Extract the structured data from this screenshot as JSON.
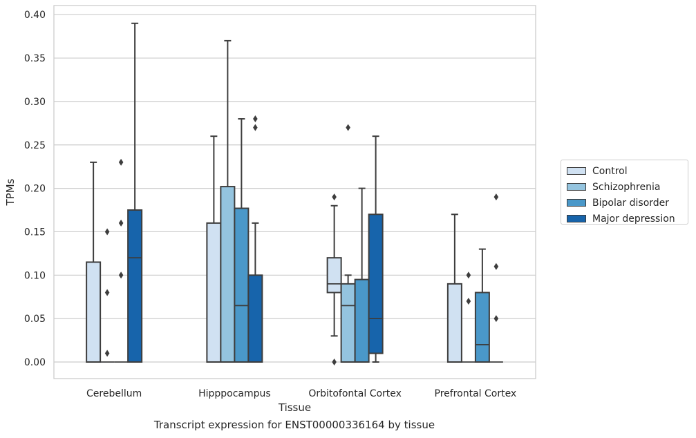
{
  "caption": "Transcript expression for ENST00000336164 by tissue",
  "chart_data": {
    "type": "box",
    "title": "",
    "xlabel": "Tissue",
    "ylabel": "TPMs",
    "ylim": [
      -0.018,
      0.405
    ],
    "yticks": [
      "0.00",
      "0.05",
      "0.10",
      "0.15",
      "0.20",
      "0.25",
      "0.30",
      "0.35",
      "0.40"
    ],
    "ytick_values": [
      0,
      0.05,
      0.1,
      0.15,
      0.2,
      0.25,
      0.3,
      0.35,
      0.4
    ],
    "grid": true,
    "legend_position": "right",
    "categories": [
      "Cerebellum",
      "Hipppocampus",
      "Orbitofontal Cortex",
      "Prefrontal Cortex"
    ],
    "series": [
      {
        "name": "Control",
        "color": "#d0e1f2",
        "boxes": [
          {
            "q1": 0,
            "median": 0,
            "q3": 0.115,
            "whisker_low": 0,
            "whisker_high": 0.23,
            "outliers": []
          },
          {
            "q1": 0,
            "median": 0,
            "q3": 0.16,
            "whisker_low": 0,
            "whisker_high": 0.26,
            "outliers": []
          },
          {
            "q1": 0.08,
            "median": 0.09,
            "q3": 0.12,
            "whisker_low": 0.03,
            "whisker_high": 0.18,
            "outliers": [
              0.19,
              0
            ]
          },
          {
            "q1": 0,
            "median": 0,
            "q3": 0.09,
            "whisker_low": 0,
            "whisker_high": 0.17,
            "outliers": []
          }
        ]
      },
      {
        "name": "Schizophrenia",
        "color": "#94c4df",
        "boxes": [
          {
            "q1": 0,
            "median": 0,
            "q3": 0,
            "whisker_low": 0,
            "whisker_high": 0,
            "outliers": [
              0.15,
              0.08,
              0.01
            ]
          },
          {
            "q1": 0,
            "median": 0,
            "q3": 0.202,
            "whisker_low": 0,
            "whisker_high": 0.37,
            "outliers": []
          },
          {
            "q1": 0,
            "median": 0.065,
            "q3": 0.09,
            "whisker_low": 0,
            "whisker_high": 0.1,
            "outliers": [
              0.27
            ]
          },
          {
            "q1": 0,
            "median": 0,
            "q3": 0,
            "whisker_low": 0,
            "whisker_high": 0,
            "outliers": [
              0.1,
              0.07
            ]
          }
        ]
      },
      {
        "name": "Bipolar disorder",
        "color": "#4a98c9",
        "boxes": [
          {
            "q1": 0,
            "median": 0,
            "q3": 0,
            "whisker_low": 0,
            "whisker_high": 0,
            "outliers": [
              0.23,
              0.16,
              0.1
            ]
          },
          {
            "q1": 0,
            "median": 0.065,
            "q3": 0.177,
            "whisker_low": 0,
            "whisker_high": 0.28,
            "outliers": []
          },
          {
            "q1": 0,
            "median": 0,
            "q3": 0.095,
            "whisker_low": 0,
            "whisker_high": 0.2,
            "outliers": []
          },
          {
            "q1": 0,
            "median": 0.02,
            "q3": 0.08,
            "whisker_low": 0,
            "whisker_high": 0.13,
            "outliers": []
          }
        ]
      },
      {
        "name": "Major depression",
        "color": "#1764ab",
        "boxes": [
          {
            "q1": 0,
            "median": 0.12,
            "q3": 0.175,
            "whisker_low": 0,
            "whisker_high": 0.39,
            "outliers": []
          },
          {
            "q1": 0,
            "median": 0,
            "q3": 0.1,
            "whisker_low": 0,
            "whisker_high": 0.16,
            "outliers": [
              0.28,
              0.27
            ]
          },
          {
            "q1": 0.01,
            "median": 0.05,
            "q3": 0.17,
            "whisker_low": 0,
            "whisker_high": 0.26,
            "outliers": []
          },
          {
            "q1": 0,
            "median": 0,
            "q3": 0,
            "whisker_low": 0,
            "whisker_high": 0,
            "outliers": [
              0.19,
              0.11,
              0.05
            ]
          }
        ]
      }
    ]
  }
}
